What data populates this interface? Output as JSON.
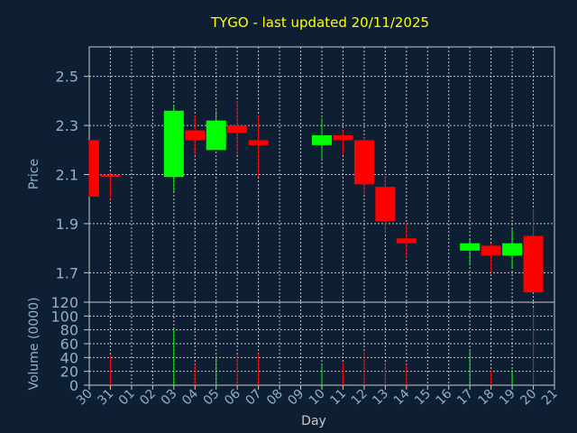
{
  "chart_data": {
    "type": "candlestick",
    "title": "TYGO - last updated 20/11/2025",
    "xlabel": "Day",
    "price_ylabel": "Price",
    "volume_ylabel": "Volume (0000)",
    "price_ylim": [
      1.58,
      2.62
    ],
    "price_yticks": [
      "1.7",
      "1.9",
      "2.1",
      "2.3",
      "2.5"
    ],
    "volume_ylim": [
      0,
      120
    ],
    "volume_yticks": [
      "0",
      "20",
      "40",
      "60",
      "80",
      "100",
      "120"
    ],
    "days": [
      "30",
      "31",
      "01",
      "02",
      "03",
      "04",
      "05",
      "06",
      "07",
      "08",
      "09",
      "10",
      "11",
      "12",
      "13",
      "14",
      "15",
      "16",
      "17",
      "18",
      "19",
      "20",
      "21"
    ],
    "colors": {
      "up": "#00ff00",
      "down": "#ff0000",
      "background": "#0f1f33",
      "title": "#ffff00"
    },
    "candles": [
      {
        "day": "30",
        "open": 2.24,
        "high": 2.24,
        "low": 2.01,
        "close": 2.01,
        "volume": 0
      },
      {
        "day": "31",
        "open": 2.1,
        "high": 2.11,
        "low": 2.0,
        "close": 2.09,
        "volume": 43
      },
      {
        "day": "03",
        "open": 2.09,
        "high": 2.38,
        "low": 2.03,
        "close": 2.36,
        "volume": 80
      },
      {
        "day": "04",
        "open": 2.28,
        "high": 2.34,
        "low": 2.18,
        "close": 2.24,
        "volume": 30
      },
      {
        "day": "05",
        "open": 2.2,
        "high": 2.36,
        "low": 2.2,
        "close": 2.32,
        "volume": 42
      },
      {
        "day": "06",
        "open": 2.3,
        "high": 2.4,
        "low": 2.18,
        "close": 2.27,
        "volume": 44
      },
      {
        "day": "07",
        "open": 2.24,
        "high": 2.34,
        "low": 2.09,
        "close": 2.22,
        "volume": 46
      },
      {
        "day": "10",
        "open": 2.22,
        "high": 2.33,
        "low": 2.16,
        "close": 2.26,
        "volume": 28
      },
      {
        "day": "11",
        "open": 2.26,
        "high": 2.28,
        "low": 2.18,
        "close": 2.24,
        "volume": 32
      },
      {
        "day": "12",
        "open": 2.24,
        "high": 2.25,
        "low": 2.02,
        "close": 2.06,
        "volume": 48
      },
      {
        "day": "13",
        "open": 2.05,
        "high": 2.11,
        "low": 1.86,
        "close": 1.91,
        "volume": 33
      },
      {
        "day": "14",
        "open": 1.84,
        "high": 1.9,
        "low": 1.76,
        "close": 1.82,
        "volume": 30
      },
      {
        "day": "17",
        "open": 1.79,
        "high": 1.84,
        "low": 1.73,
        "close": 1.82,
        "volume": 50
      },
      {
        "day": "18",
        "open": 1.81,
        "high": 1.82,
        "low": 1.7,
        "close": 1.77,
        "volume": 22
      },
      {
        "day": "19",
        "open": 1.77,
        "high": 1.88,
        "low": 1.72,
        "close": 1.82,
        "volume": 22
      },
      {
        "day": "20",
        "open": 1.85,
        "high": 1.96,
        "low": 1.62,
        "close": 1.62,
        "volume": 112
      }
    ],
    "grid": true
  }
}
